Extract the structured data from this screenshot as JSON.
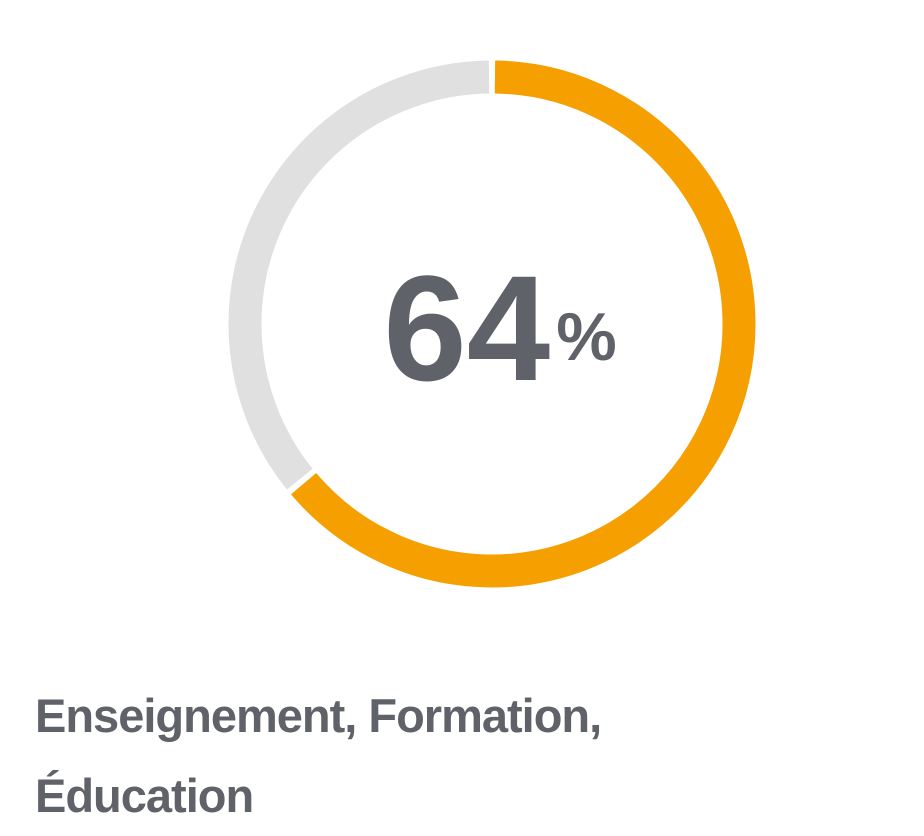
{
  "chart_data": {
    "type": "donut",
    "title": "Enseignement, Formation, Éducation",
    "values": [
      64
    ],
    "value_labels": [
      "64%"
    ],
    "ylim": [
      0,
      100
    ],
    "color": "#f5a000",
    "track_color": "#e0e0e0"
  }
}
